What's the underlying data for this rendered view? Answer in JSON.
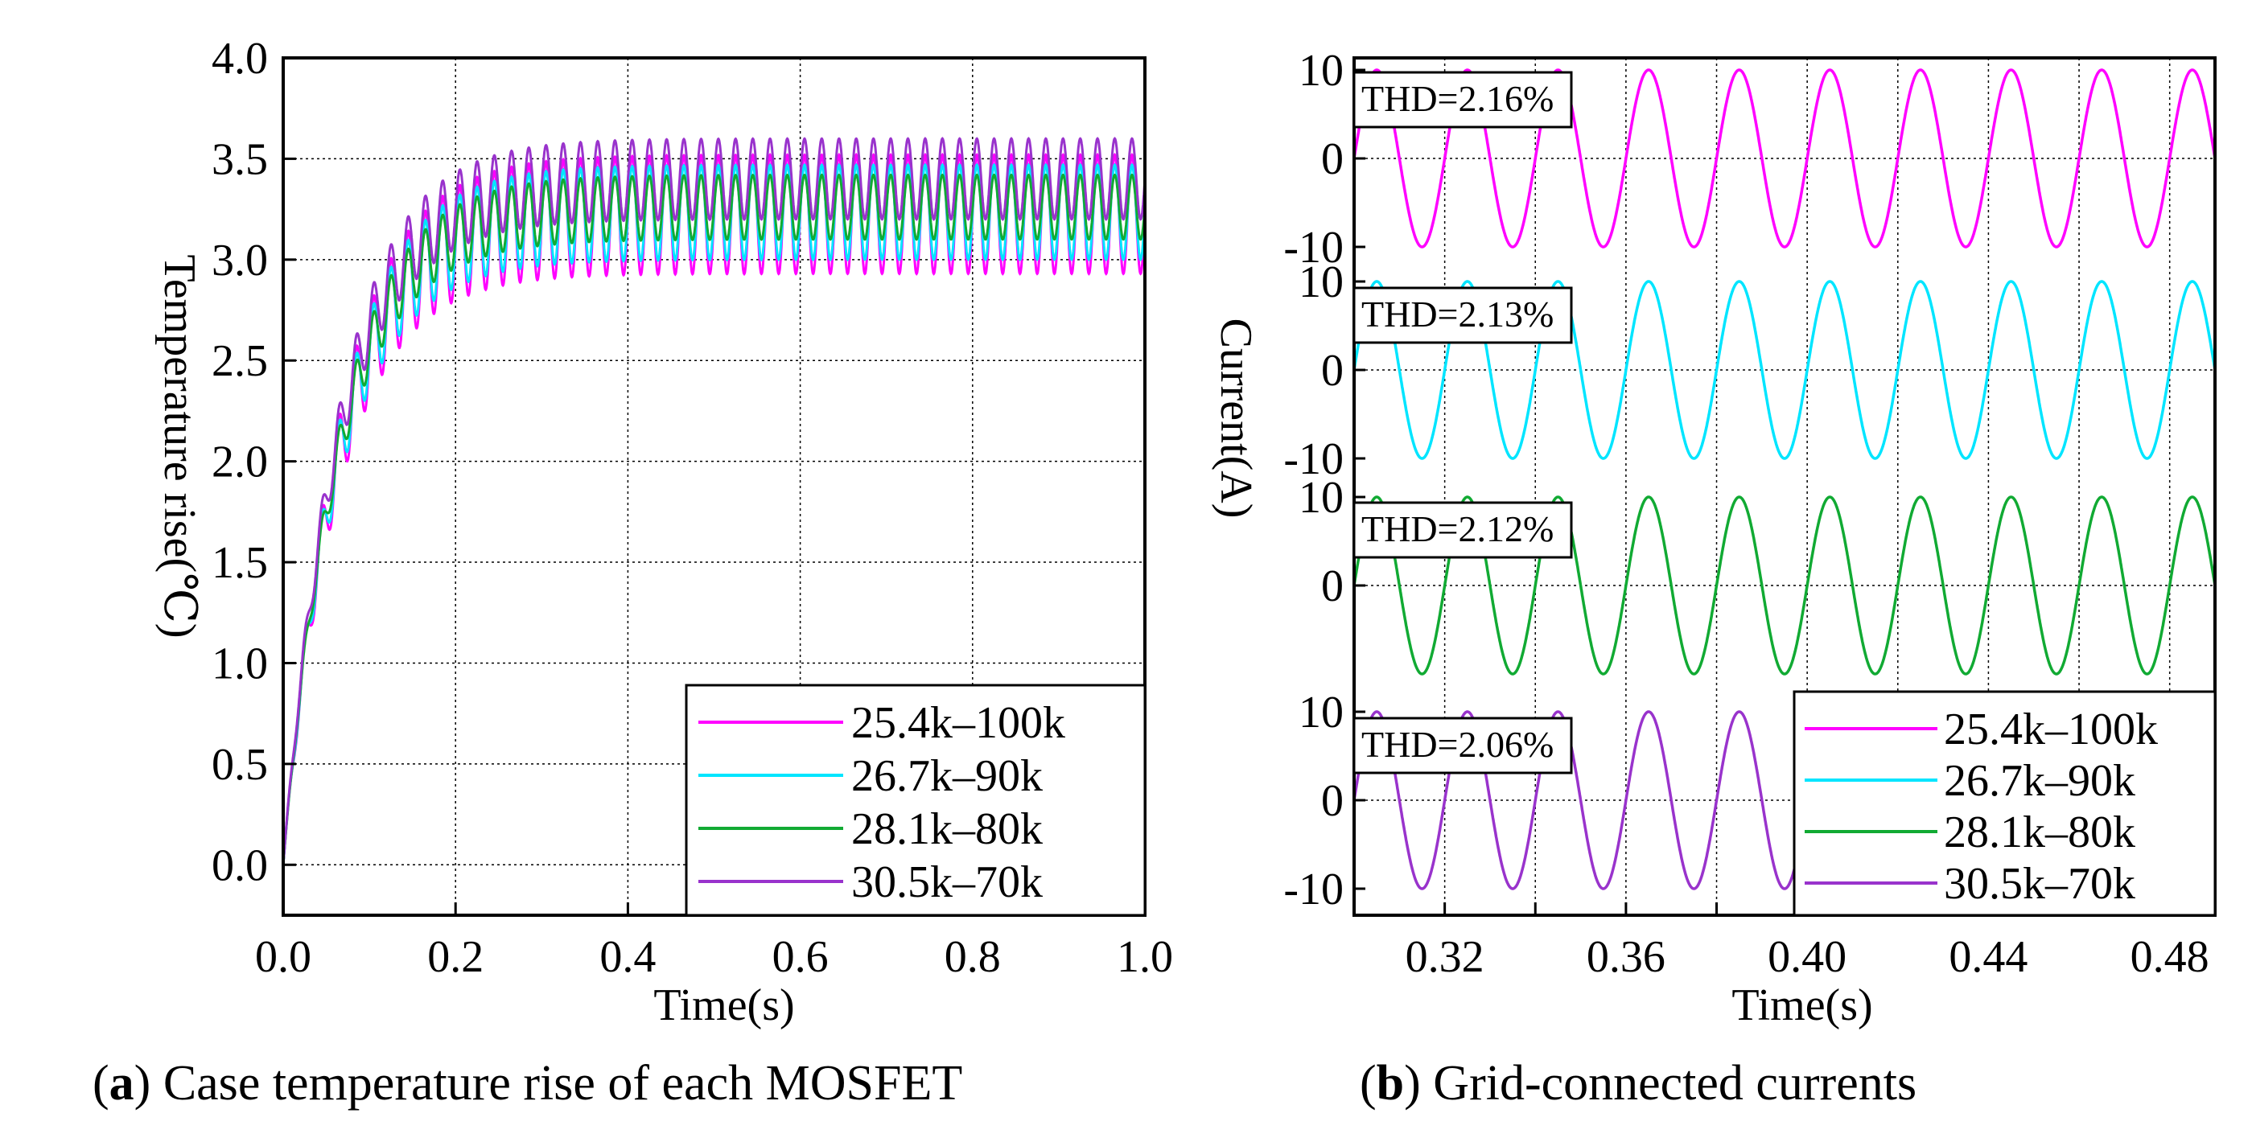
{
  "chart_data": [
    {
      "type": "line",
      "panel": "a",
      "title": "",
      "xlabel": "Time(s)",
      "ylabel": "Temperature rise(℃)",
      "xlim": [
        0.0,
        1.0
      ],
      "ylim": [
        -0.25,
        4.0
      ],
      "x_ticks": [
        "0.0",
        "0.2",
        "0.4",
        "0.6",
        "0.8",
        "1.0"
      ],
      "x_tick_values": [
        0.0,
        0.2,
        0.4,
        0.6,
        0.8,
        1.0
      ],
      "y_ticks": [
        "0.0",
        "0.5",
        "1.0",
        "1.5",
        "2.0",
        "2.5",
        "3.0",
        "3.5",
        "4.0"
      ],
      "y_tick_values": [
        0.0,
        0.5,
        1.0,
        1.5,
        2.0,
        2.5,
        3.0,
        3.5,
        4.0
      ],
      "grid": true,
      "legend_position": "bottom-right",
      "ripple_frequency_hz": 50,
      "time_constant_s": 0.065,
      "series": [
        {
          "name": "25.4k–100k",
          "color": "#ff00ff",
          "steady_min": 2.93,
          "steady_max": 3.52
        },
        {
          "name": "26.7k–90k",
          "color": "#00e5ff",
          "steady_min": 3.0,
          "steady_max": 3.47
        },
        {
          "name": "28.1k–80k",
          "color": "#11aa33",
          "steady_min": 3.1,
          "steady_max": 3.42
        },
        {
          "name": "30.5k–70k",
          "color": "#9933cc",
          "steady_min": 3.2,
          "steady_max": 3.6
        }
      ]
    },
    {
      "type": "line",
      "panel": "b",
      "title": "",
      "xlabel": "Time(s)",
      "ylabel": "Current(A)",
      "xlim": [
        0.3,
        0.49
      ],
      "x_ticks": [
        "0.32",
        "0.36",
        "0.40",
        "0.44",
        "0.48"
      ],
      "x_tick_values": [
        0.32,
        0.36,
        0.4,
        0.44,
        0.48
      ],
      "sub_y_ticks": [
        "10",
        "0",
        "-10"
      ],
      "sub_y_tick_values": [
        10,
        0,
        -10
      ],
      "grid": true,
      "legend_position": "bottom-right",
      "frequency_hz": 50,
      "series": [
        {
          "name": "25.4k–100k",
          "color": "#ff00ff",
          "amplitude": 10,
          "thd_label": "THD=2.16%"
        },
        {
          "name": "26.7k–90k",
          "color": "#00e5ff",
          "amplitude": 10,
          "thd_label": "THD=2.13%"
        },
        {
          "name": "28.1k–80k",
          "color": "#11aa33",
          "amplitude": 10,
          "thd_label": "THD=2.12%"
        },
        {
          "name": "30.5k–70k",
          "color": "#9933cc",
          "amplitude": 10,
          "thd_label": "THD=2.06%"
        }
      ]
    }
  ],
  "captions": {
    "a_label": "a",
    "a_text": "Case temperature rise of each MOSFET",
    "b_label": "b",
    "b_text": "Grid-connected currents"
  }
}
